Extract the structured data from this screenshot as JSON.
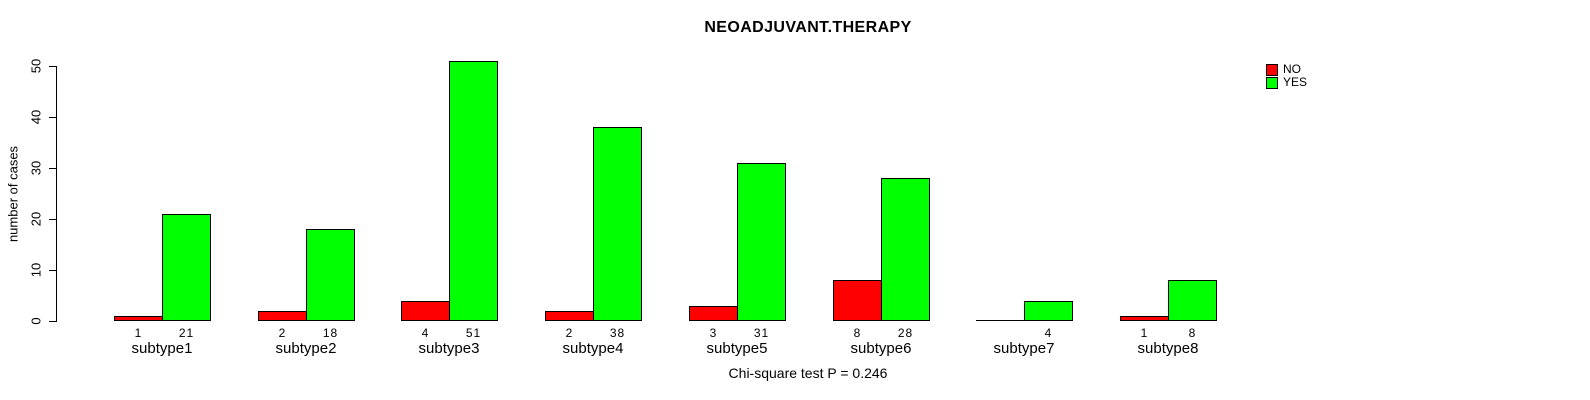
{
  "chart_data": {
    "type": "bar",
    "title": "NEOADJUVANT.THERAPY",
    "xlabel": "",
    "ylabel": "number of cases",
    "ylim": [
      0,
      50
    ],
    "yticks": [
      0,
      10,
      20,
      30,
      40,
      50
    ],
    "grid": false,
    "legend_position": "top-right",
    "categories": [
      "subtype1",
      "subtype2",
      "subtype3",
      "subtype4",
      "subtype5",
      "subtype6",
      "subtype7",
      "subtype8"
    ],
    "series": [
      {
        "name": "NO",
        "color": "#FF0000",
        "values": [
          1,
          2,
          4,
          2,
          3,
          8,
          0,
          1
        ]
      },
      {
        "name": "YES",
        "color": "#00FF00",
        "values": [
          21,
          18,
          51,
          38,
          31,
          28,
          4,
          8
        ]
      }
    ],
    "bar_value_labels_shown": true,
    "zero_values_unlabeled": true,
    "annotation": "Chi-square test P = 0.246"
  },
  "legend": {
    "items": [
      {
        "label": "NO",
        "color": "#FF0000",
        "swatch": "filled-square-icon"
      },
      {
        "label": "YES",
        "color": "#00FF00",
        "swatch": "filled-square-icon"
      }
    ]
  },
  "colors": {
    "background": "#FFFFFF",
    "axis": "#000000",
    "bar_border": "#000000",
    "no": "#FF0000",
    "yes": "#00FF00"
  }
}
